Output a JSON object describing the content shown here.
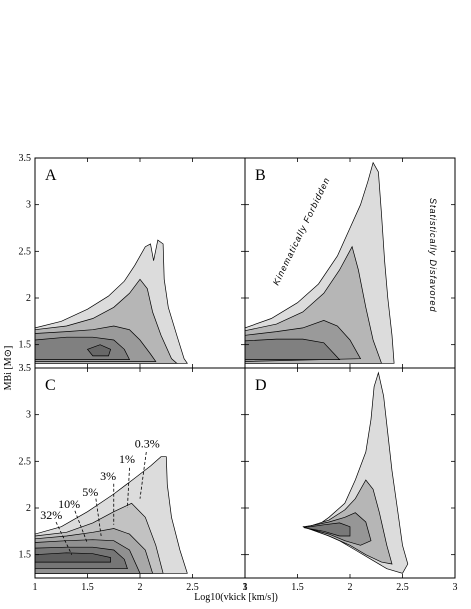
{
  "chart_data": {
    "type": "contour",
    "xlabel": "Log10(vkick [km/s])",
    "ylabel": "MBi [M⊙]",
    "xlim": [
      1,
      3
    ],
    "ylim": [
      1.25,
      3.5
    ],
    "x_ticks": [
      "1",
      "1.5",
      "2",
      "2.5",
      "3"
    ],
    "y_ticks": [
      "1.5",
      "2",
      "2.5",
      "3",
      "3.5"
    ],
    "panels": [
      {
        "label": "A",
        "levels": [
          {
            "fill": "#dcdcdc",
            "poly": [
              [
                1.0,
                1.68
              ],
              [
                1.25,
                1.75
              ],
              [
                1.5,
                1.88
              ],
              [
                1.7,
                2.02
              ],
              [
                1.85,
                2.18
              ],
              [
                1.95,
                2.35
              ],
              [
                2.05,
                2.55
              ],
              [
                2.1,
                2.58
              ],
              [
                2.13,
                2.4
              ],
              [
                2.17,
                2.62
              ],
              [
                2.22,
                2.58
              ],
              [
                2.23,
                2.2
              ],
              [
                2.27,
                1.9
              ],
              [
                2.35,
                1.6
              ],
              [
                2.42,
                1.35
              ],
              [
                2.45,
                1.3
              ],
              [
                1.0,
                1.3
              ]
            ]
          },
          {
            "fill": "#b6b6b6",
            "poly": [
              [
                1.0,
                1.66
              ],
              [
                1.3,
                1.7
              ],
              [
                1.55,
                1.78
              ],
              [
                1.75,
                1.9
              ],
              [
                1.9,
                2.05
              ],
              [
                2.0,
                2.2
              ],
              [
                2.07,
                2.1
              ],
              [
                2.12,
                1.85
              ],
              [
                2.2,
                1.6
              ],
              [
                2.3,
                1.35
              ],
              [
                2.35,
                1.3
              ],
              [
                1.0,
                1.3
              ]
            ]
          },
          {
            "fill": "#9a9a9a",
            "poly": [
              [
                1.0,
                1.62
              ],
              [
                1.3,
                1.64
              ],
              [
                1.55,
                1.66
              ],
              [
                1.75,
                1.7
              ],
              [
                1.9,
                1.66
              ],
              [
                2.0,
                1.55
              ],
              [
                2.1,
                1.4
              ],
              [
                2.15,
                1.32
              ],
              [
                1.0,
                1.32
              ]
            ]
          },
          {
            "fill": "#808080",
            "poly": [
              [
                1.0,
                1.55
              ],
              [
                1.3,
                1.58
              ],
              [
                1.55,
                1.58
              ],
              [
                1.75,
                1.55
              ],
              [
                1.85,
                1.45
              ],
              [
                1.9,
                1.34
              ],
              [
                1.0,
                1.34
              ]
            ]
          },
          {
            "fill": "#686868",
            "poly": [
              [
                1.5,
                1.45
              ],
              [
                1.62,
                1.5
              ],
              [
                1.72,
                1.45
              ],
              [
                1.7,
                1.38
              ],
              [
                1.55,
                1.38
              ]
            ]
          }
        ],
        "text": []
      },
      {
        "label": "B",
        "levels": [
          {
            "fill": "#dcdcdc",
            "poly": [
              [
                1.0,
                1.68
              ],
              [
                1.25,
                1.78
              ],
              [
                1.5,
                1.95
              ],
              [
                1.7,
                2.15
              ],
              [
                1.88,
                2.45
              ],
              [
                2.0,
                2.75
              ],
              [
                2.1,
                3.0
              ],
              [
                2.17,
                3.25
              ],
              [
                2.22,
                3.45
              ],
              [
                2.27,
                3.35
              ],
              [
                2.3,
                2.9
              ],
              [
                2.33,
                2.4
              ],
              [
                2.36,
                2.0
              ],
              [
                2.4,
                1.6
              ],
              [
                2.42,
                1.3
              ],
              [
                1.0,
                1.3
              ]
            ]
          },
          {
            "fill": "#b6b6b6",
            "poly": [
              [
                1.0,
                1.65
              ],
              [
                1.3,
                1.72
              ],
              [
                1.55,
                1.85
              ],
              [
                1.75,
                2.05
              ],
              [
                1.9,
                2.3
              ],
              [
                2.02,
                2.55
              ],
              [
                2.08,
                2.3
              ],
              [
                2.15,
                1.9
              ],
              [
                2.22,
                1.55
              ],
              [
                2.3,
                1.3
              ],
              [
                1.0,
                1.3
              ]
            ]
          },
          {
            "fill": "#9a9a9a",
            "poly": [
              [
                1.0,
                1.6
              ],
              [
                1.3,
                1.64
              ],
              [
                1.55,
                1.68
              ],
              [
                1.75,
                1.76
              ],
              [
                1.88,
                1.7
              ],
              [
                2.0,
                1.55
              ],
              [
                2.1,
                1.35
              ],
              [
                1.0,
                1.32
              ]
            ]
          },
          {
            "fill": "#808080",
            "poly": [
              [
                1.0,
                1.54
              ],
              [
                1.3,
                1.56
              ],
              [
                1.55,
                1.56
              ],
              [
                1.75,
                1.52
              ],
              [
                1.85,
                1.4
              ],
              [
                1.9,
                1.34
              ],
              [
                1.0,
                1.34
              ]
            ]
          }
        ],
        "text": [
          "Kinematically Forbidden",
          "Statistically Disfavored"
        ]
      },
      {
        "label": "C",
        "levels": [
          {
            "fill": "#dcdcdc",
            "poly": [
              [
                1.0,
                1.72
              ],
              [
                1.25,
                1.8
              ],
              [
                1.5,
                1.96
              ],
              [
                1.75,
                2.15
              ],
              [
                1.95,
                2.32
              ],
              [
                2.1,
                2.45
              ],
              [
                2.2,
                2.55
              ],
              [
                2.25,
                2.55
              ],
              [
                2.26,
                2.25
              ],
              [
                2.3,
                1.9
              ],
              [
                2.38,
                1.55
              ],
              [
                2.45,
                1.3
              ],
              [
                1.0,
                1.3
              ]
            ]
          },
          {
            "fill": "#c2c2c2",
            "poly": [
              [
                1.0,
                1.7
              ],
              [
                1.3,
                1.74
              ],
              [
                1.55,
                1.84
              ],
              [
                1.75,
                1.96
              ],
              [
                1.92,
                2.05
              ],
              [
                2.05,
                1.9
              ],
              [
                2.15,
                1.6
              ],
              [
                2.22,
                1.3
              ],
              [
                1.0,
                1.3
              ]
            ]
          },
          {
            "fill": "#a8a8a8",
            "poly": [
              [
                1.0,
                1.67
              ],
              [
                1.3,
                1.7
              ],
              [
                1.55,
                1.74
              ],
              [
                1.75,
                1.78
              ],
              [
                1.9,
                1.72
              ],
              [
                2.05,
                1.55
              ],
              [
                2.12,
                1.3
              ],
              [
                1.0,
                1.3
              ]
            ]
          },
          {
            "fill": "#909090",
            "poly": [
              [
                1.0,
                1.63
              ],
              [
                1.3,
                1.65
              ],
              [
                1.55,
                1.66
              ],
              [
                1.75,
                1.65
              ],
              [
                1.9,
                1.55
              ],
              [
                2.0,
                1.3
              ],
              [
                1.0,
                1.3
              ]
            ]
          },
          {
            "fill": "#767676",
            "poly": [
              [
                1.0,
                1.57
              ],
              [
                1.3,
                1.58
              ],
              [
                1.55,
                1.58
              ],
              [
                1.75,
                1.55
              ],
              [
                1.85,
                1.45
              ],
              [
                1.88,
                1.35
              ],
              [
                1.0,
                1.35
              ]
            ]
          },
          {
            "fill": "#5e5e5e",
            "poly": [
              [
                1.0,
                1.5
              ],
              [
                1.3,
                1.52
              ],
              [
                1.55,
                1.51
              ],
              [
                1.72,
                1.47
              ],
              [
                1.72,
                1.42
              ],
              [
                1.5,
                1.42
              ],
              [
                1.0,
                1.42
              ]
            ]
          }
        ],
        "percent_labels": [
          {
            "text": "32%",
            "x": 1.05,
            "y": 1.88,
            "x1": 1.2,
            "y1": 1.85,
            "x2": 1.35,
            "y2": 1.5
          },
          {
            "text": "10%",
            "x": 1.22,
            "y": 2.0,
            "x1": 1.38,
            "y1": 1.97,
            "x2": 1.5,
            "y2": 1.62
          },
          {
            "text": "5%",
            "x": 1.45,
            "y": 2.13,
            "x1": 1.58,
            "y1": 2.1,
            "x2": 1.63,
            "y2": 1.7
          },
          {
            "text": "3%",
            "x": 1.62,
            "y": 2.3,
            "x1": 1.75,
            "y1": 2.26,
            "x2": 1.75,
            "y2": 1.82
          },
          {
            "text": "1%",
            "x": 1.8,
            "y": 2.48,
            "x1": 1.9,
            "y1": 2.43,
            "x2": 1.88,
            "y2": 2.0
          },
          {
            "text": "0.3%",
            "x": 1.95,
            "y": 2.65,
            "x1": 2.06,
            "y1": 2.6,
            "x2": 2.0,
            "y2": 2.1
          }
        ]
      },
      {
        "label": "D",
        "levels": [
          {
            "fill": "#dcdcdc",
            "poly": [
              [
                1.7,
                1.82
              ],
              [
                1.8,
                1.9
              ],
              [
                1.95,
                2.05
              ],
              [
                2.05,
                2.3
              ],
              [
                2.15,
                2.6
              ],
              [
                2.2,
                2.95
              ],
              [
                2.23,
                3.3
              ],
              [
                2.27,
                3.45
              ],
              [
                2.32,
                3.2
              ],
              [
                2.36,
                2.8
              ],
              [
                2.4,
                2.4
              ],
              [
                2.45,
                2.0
              ],
              [
                2.5,
                1.6
              ],
              [
                2.55,
                1.4
              ],
              [
                2.5,
                1.3
              ],
              [
                2.35,
                1.35
              ],
              [
                2.2,
                1.45
              ],
              [
                2.05,
                1.55
              ],
              [
                1.9,
                1.65
              ],
              [
                1.7,
                1.75
              ],
              [
                1.55,
                1.8
              ]
            ]
          },
          {
            "fill": "#b6b6b6",
            "poly": [
              [
                1.6,
                1.8
              ],
              [
                1.8,
                1.87
              ],
              [
                1.95,
                1.98
              ],
              [
                2.05,
                2.1
              ],
              [
                2.15,
                2.3
              ],
              [
                2.22,
                2.2
              ],
              [
                2.28,
                1.95
              ],
              [
                2.35,
                1.6
              ],
              [
                2.4,
                1.4
              ],
              [
                2.3,
                1.42
              ],
              [
                2.15,
                1.5
              ],
              [
                2.0,
                1.6
              ],
              [
                1.8,
                1.7
              ],
              [
                1.6,
                1.78
              ]
            ]
          },
          {
            "fill": "#969696",
            "poly": [
              [
                1.58,
                1.8
              ],
              [
                1.8,
                1.85
              ],
              [
                1.95,
                1.9
              ],
              [
                2.05,
                1.95
              ],
              [
                2.15,
                1.85
              ],
              [
                2.2,
                1.65
              ],
              [
                2.1,
                1.6
              ],
              [
                1.95,
                1.65
              ],
              [
                1.8,
                1.72
              ],
              [
                1.6,
                1.78
              ]
            ]
          },
          {
            "fill": "#787878",
            "poly": [
              [
                1.56,
                1.79
              ],
              [
                1.75,
                1.82
              ],
              [
                1.9,
                1.84
              ],
              [
                2.0,
                1.8
              ],
              [
                2.0,
                1.7
              ],
              [
                1.9,
                1.7
              ],
              [
                1.75,
                1.75
              ],
              [
                1.6,
                1.78
              ]
            ]
          }
        ],
        "text": []
      }
    ]
  }
}
